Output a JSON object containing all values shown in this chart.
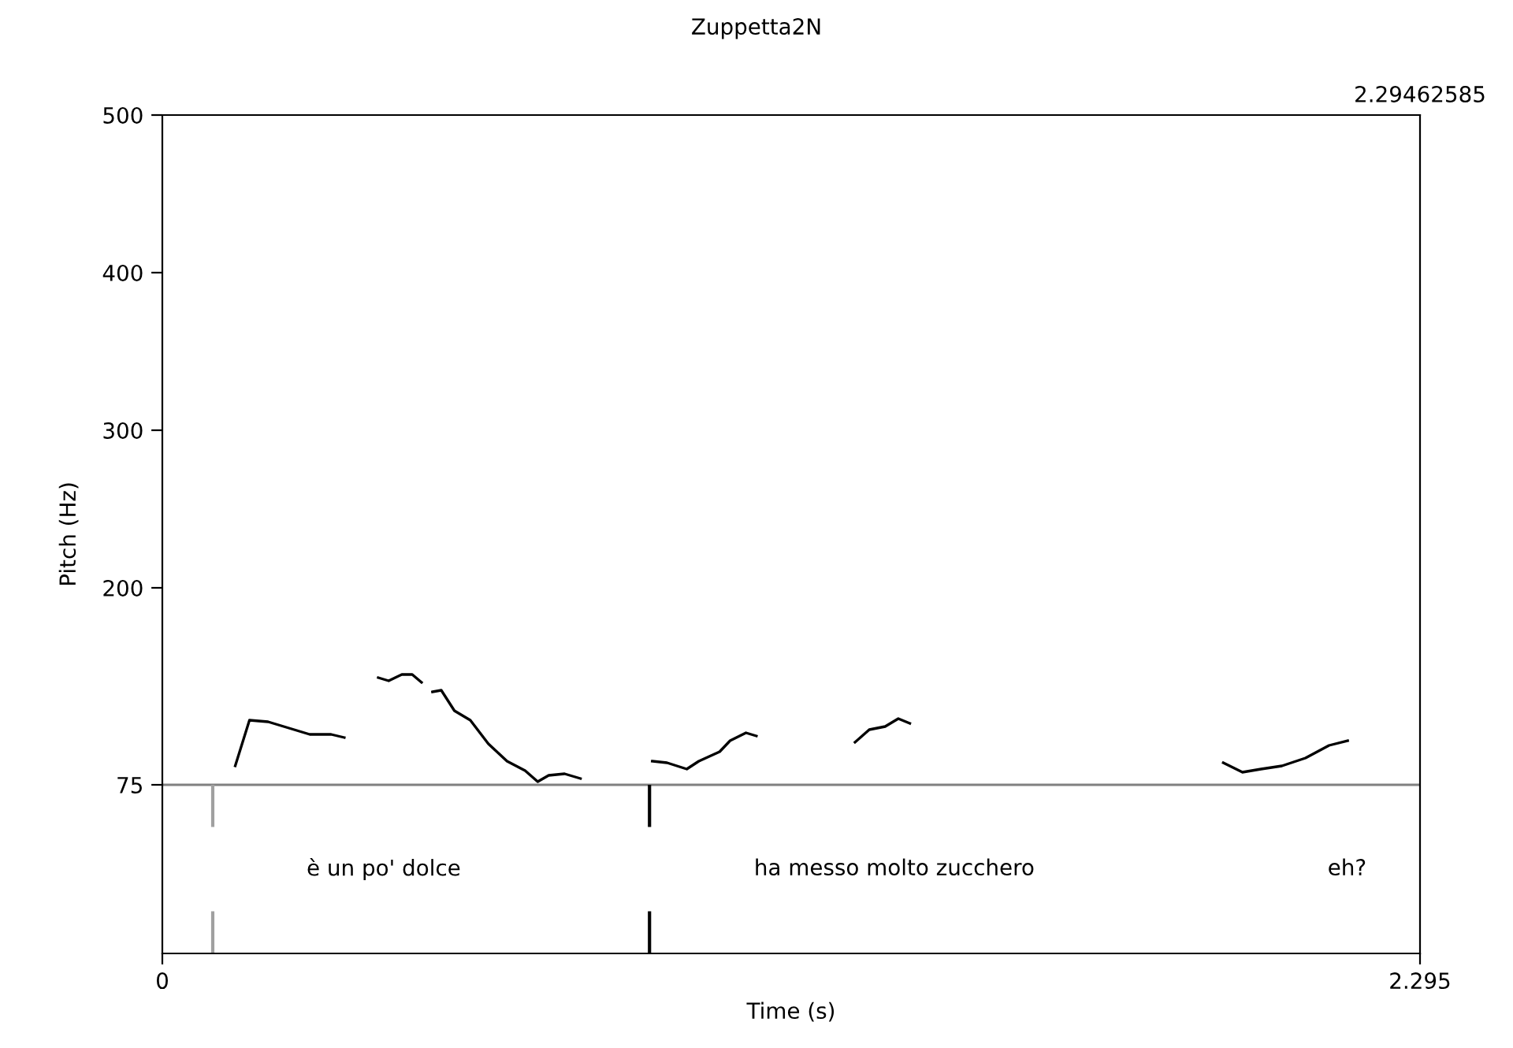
{
  "chart_data": {
    "type": "line",
    "title": "Zuppetta2N",
    "ylabel": "Pitch (Hz)",
    "xlabel": "Time (s)",
    "xlim": [
      0,
      2.295
    ],
    "xticks": [
      0,
      2.295
    ],
    "ylim": [
      -32,
      500
    ],
    "yticks": [
      75,
      200,
      300,
      400,
      500
    ],
    "grid": false,
    "legend": false,
    "series": [
      {
        "color": "#000000",
        "x": [
          0.133,
          0.159,
          0.193,
          0.231,
          0.269,
          0.308,
          0.332,
          0.363,
          0.394,
          0.413,
          0.437,
          0.456,
          0.473,
          0.483,
          0.493,
          0.509,
          0.533,
          0.562,
          0.595,
          0.629,
          0.662,
          0.685,
          0.705,
          0.734,
          0.763,
          0.83,
          0.894,
          0.921,
          0.957,
          0.979,
          1.017,
          1.036,
          1.065,
          1.084,
          1.17,
          1.264,
          1.29,
          1.319,
          1.343,
          1.364,
          1.65,
          1.936,
          1.971,
          2.005,
          2.043,
          2.086,
          2.129,
          2.163
        ],
        "values": [
          87,
          116,
          115,
          111,
          107,
          107,
          105,
          null,
          143,
          141,
          145,
          145,
          140,
          null,
          134,
          135,
          122,
          116,
          101,
          90,
          84,
          77,
          81,
          82,
          79,
          null,
          90,
          89,
          85,
          90,
          96,
          103,
          108,
          106,
          null,
          102,
          110,
          112,
          117,
          114,
          null,
          89,
          83,
          85,
          87,
          92,
          100,
          103
        ]
      }
    ],
    "ref_lines": [
      {
        "axis": "y",
        "value": 75,
        "color": "#808080"
      },
      {
        "axis": "x",
        "value": 0.092,
        "color": "#a0a0a0"
      },
      {
        "axis": "x",
        "value": 0.889,
        "color": "#000000"
      }
    ],
    "annotations": [
      "2.29462585",
      "è un po' dolce",
      "ha messo molto zucchero",
      "eh?"
    ]
  }
}
